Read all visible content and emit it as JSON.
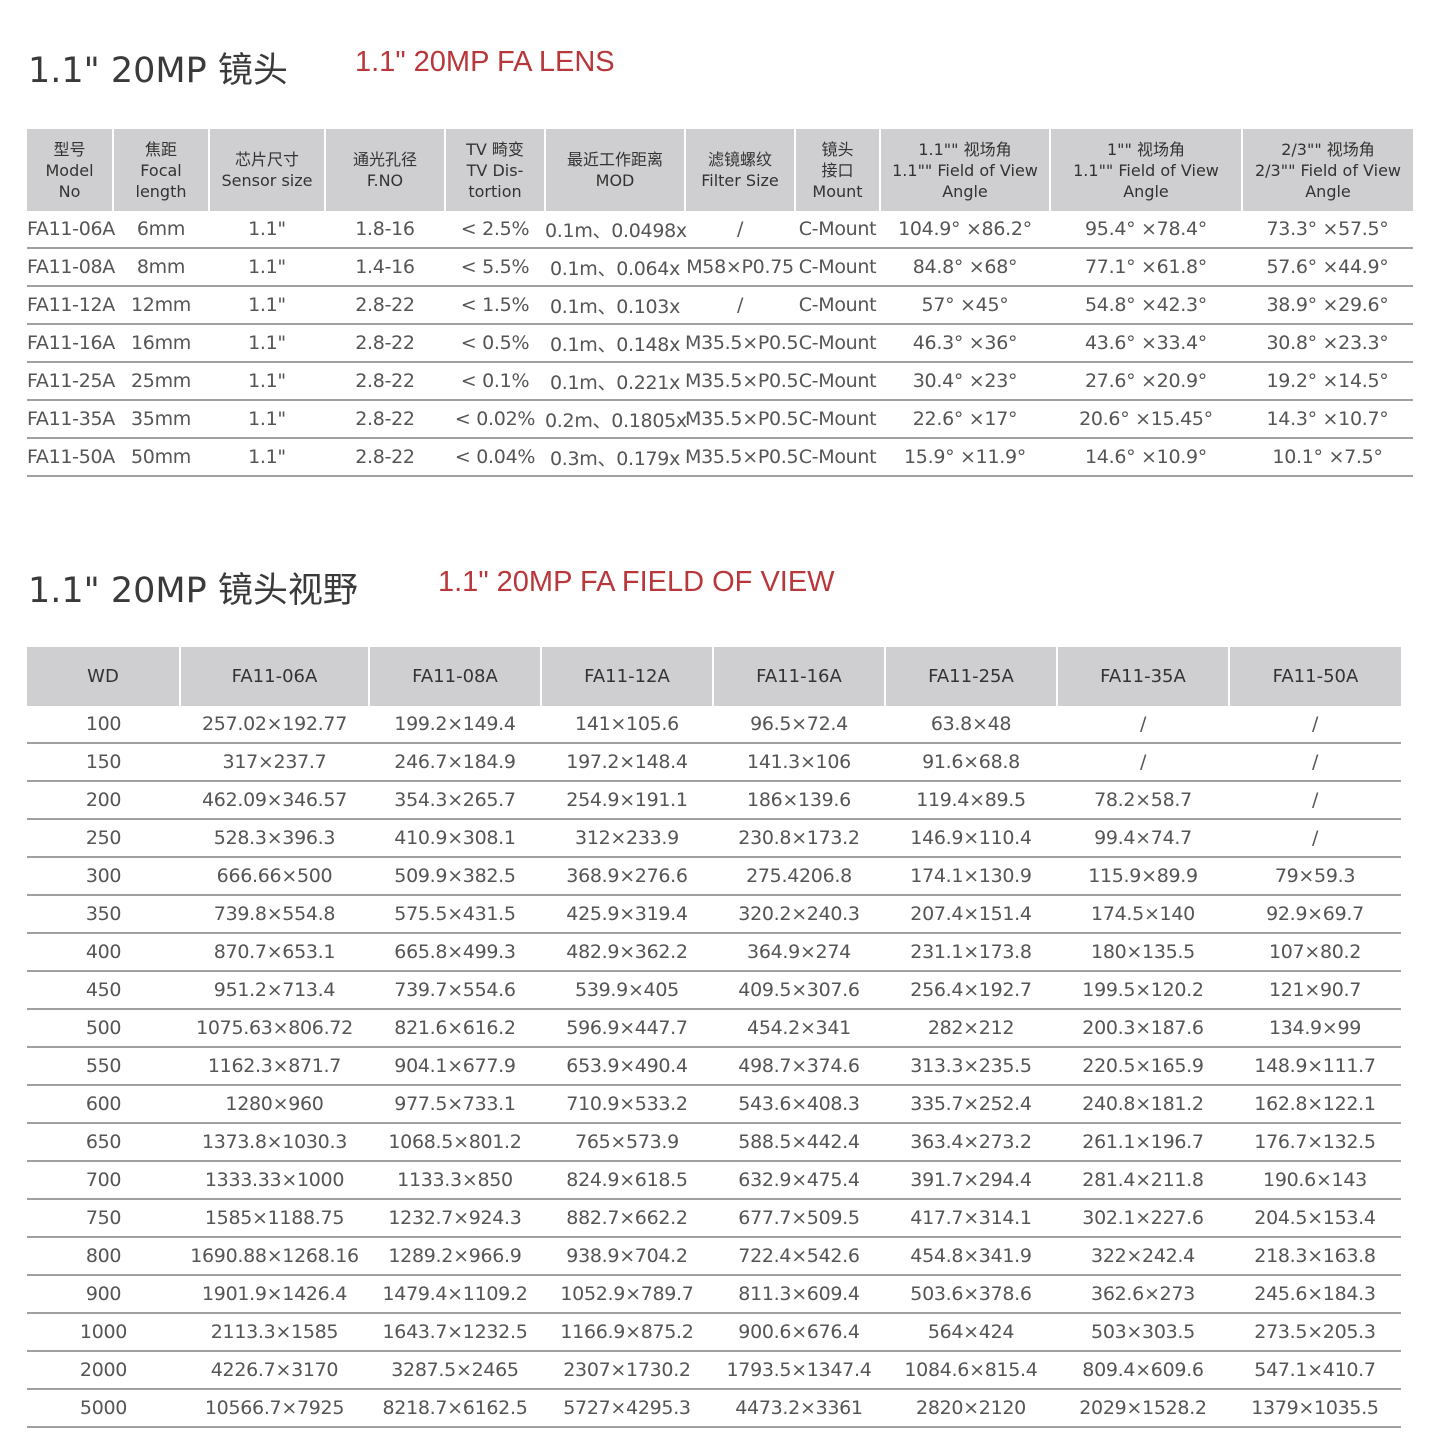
{
  "lens": {
    "title": "1.1\" 20MP 镜头",
    "subtitle": "1.1\" 20MP FA LENS",
    "headers": [
      [
        "型号",
        "Model",
        "No"
      ],
      [
        "焦距",
        "Focal",
        "length"
      ],
      [
        "芯片尺寸",
        "Sensor size"
      ],
      [
        "通光孔径",
        "F.NO"
      ],
      [
        "TV 畸变",
        "TV Dis-",
        "tortion"
      ],
      [
        "最近工作距离",
        "MOD"
      ],
      [
        "滤镜螺纹",
        "Filter Size"
      ],
      [
        "镜头",
        "接口",
        "Mount"
      ],
      [
        "1.1\"\" 视场角",
        "1.1\"\" Field of View",
        "Angle"
      ],
      [
        "1\"\" 视场角",
        "1.1\"\" Field of View",
        "Angle"
      ],
      [
        "2/3\"\" 视场角",
        "2/3\"\" Field of View",
        "Angle"
      ]
    ],
    "rows": [
      [
        "FA11-06A",
        "6mm",
        "1.1\"",
        "1.8-16",
        "< 2.5%",
        "0.1m、0.0498x",
        "/",
        "C-Mount",
        "104.9° ×86.2°",
        "95.4° ×78.4°",
        "73.3° ×57.5°"
      ],
      [
        "FA11-08A",
        "8mm",
        "1.1\"",
        "1.4-16",
        "< 5.5%",
        "0.1m、0.064x",
        "M58×P0.75",
        "C-Mount",
        "84.8° ×68°",
        "77.1° ×61.8°",
        "57.6° ×44.9°"
      ],
      [
        "FA11-12A",
        "12mm",
        "1.1\"",
        "2.8-22",
        "< 1.5%",
        "0.1m、0.103x",
        "/",
        "C-Mount",
        "57° ×45°",
        "54.8° ×42.3°",
        "38.9° ×29.6°"
      ],
      [
        "FA11-16A",
        "16mm",
        "1.1\"",
        "2.8-22",
        "< 0.5%",
        "0.1m、0.148x",
        "M35.5×P0.5",
        "C-Mount",
        "46.3° ×36°",
        "43.6° ×33.4°",
        "30.8° ×23.3°"
      ],
      [
        "FA11-25A",
        "25mm",
        "1.1\"",
        "2.8-22",
        "< 0.1%",
        "0.1m、0.221x",
        "M35.5×P0.5",
        "C-Mount",
        "30.4° ×23°",
        "27.6° ×20.9°",
        "19.2° ×14.5°"
      ],
      [
        "FA11-35A",
        "35mm",
        "1.1\"",
        "2.8-22",
        "< 0.02%",
        "0.2m、0.1805x",
        "M35.5×P0.5",
        "C-Mount",
        "22.6° ×17°",
        "20.6° ×15.45°",
        "14.3° ×10.7°"
      ],
      [
        "FA11-50A",
        "50mm",
        "1.1\"",
        "2.8-22",
        "< 0.04%",
        "0.3m、0.179x",
        "M35.5×P0.5",
        "C-Mount",
        "15.9° ×11.9°",
        "14.6° ×10.9°",
        "10.1° ×7.5°"
      ]
    ]
  },
  "fov": {
    "title": "1.1\" 20MP 镜头视野",
    "subtitle": "1.1\" 20MP FA FIELD OF VIEW",
    "headers": [
      "WD",
      "FA11-06A",
      "FA11-08A",
      "FA11-12A",
      "FA11-16A",
      "FA11-25A",
      "FA11-35A",
      "FA11-50A"
    ],
    "rows": [
      [
        "100",
        "257.02×192.77",
        "199.2×149.4",
        "141×105.6",
        "96.5×72.4",
        "63.8×48",
        "/",
        "/"
      ],
      [
        "150",
        "317×237.7",
        "246.7×184.9",
        "197.2×148.4",
        "141.3×106",
        "91.6×68.8",
        "/",
        "/"
      ],
      [
        "200",
        "462.09×346.57",
        "354.3×265.7",
        "254.9×191.1",
        "186×139.6",
        "119.4×89.5",
        "78.2×58.7",
        "/"
      ],
      [
        "250",
        "528.3×396.3",
        "410.9×308.1",
        "312×233.9",
        "230.8×173.2",
        "146.9×110.4",
        "99.4×74.7",
        "/"
      ],
      [
        "300",
        "666.66×500",
        "509.9×382.5",
        "368.9×276.6",
        "275.4206.8",
        "174.1×130.9",
        "115.9×89.9",
        "79×59.3"
      ],
      [
        "350",
        "739.8×554.8",
        "575.5×431.5",
        "425.9×319.4",
        "320.2×240.3",
        "207.4×151.4",
        "174.5×140",
        "92.9×69.7"
      ],
      [
        "400",
        "870.7×653.1",
        "665.8×499.3",
        "482.9×362.2",
        "364.9×274",
        "231.1×173.8",
        "180×135.5",
        "107×80.2"
      ],
      [
        "450",
        "951.2×713.4",
        "739.7×554.6",
        "539.9×405",
        "409.5×307.6",
        "256.4×192.7",
        "199.5×120.2",
        "121×90.7"
      ],
      [
        "500",
        "1075.63×806.72",
        "821.6×616.2",
        "596.9×447.7",
        "454.2×341",
        "282×212",
        "200.3×187.6",
        "134.9×99"
      ],
      [
        "550",
        "1162.3×871.7",
        "904.1×677.9",
        "653.9×490.4",
        "498.7×374.6",
        "313.3×235.5",
        "220.5×165.9",
        "148.9×111.7"
      ],
      [
        "600",
        "1280×960",
        "977.5×733.1",
        "710.9×533.2",
        "543.6×408.3",
        "335.7×252.4",
        "240.8×181.2",
        "162.8×122.1"
      ],
      [
        "650",
        "1373.8×1030.3",
        "1068.5×801.2",
        "765×573.9",
        "588.5×442.4",
        "363.4×273.2",
        "261.1×196.7",
        "176.7×132.5"
      ],
      [
        "700",
        "1333.33×1000",
        "1133.3×850",
        "824.9×618.5",
        "632.9×475.4",
        "391.7×294.4",
        "281.4×211.8",
        "190.6×143"
      ],
      [
        "750",
        "1585×1188.75",
        "1232.7×924.3",
        "882.7×662.2",
        "677.7×509.5",
        "417.7×314.1",
        "302.1×227.6",
        "204.5×153.4"
      ],
      [
        "800",
        "1690.88×1268.16",
        "1289.2×966.9",
        "938.9×704.2",
        "722.4×542.6",
        "454.8×341.9",
        "322×242.4",
        "218.3×163.8"
      ],
      [
        "900",
        "1901.9×1426.4",
        "1479.4×1109.2",
        "1052.9×789.7",
        "811.3×609.4",
        "503.6×378.6",
        "362.6×273",
        "245.6×184.3"
      ],
      [
        "1000",
        "2113.3×1585",
        "1643.7×1232.5",
        "1166.9×875.2",
        "900.6×676.4",
        "564×424",
        "503×303.5",
        "273.5×205.3"
      ],
      [
        "2000",
        "4226.7×3170",
        "3287.5×2465",
        "2307×1730.2",
        "1793.5×1347.4",
        "1084.6×815.4",
        "809.4×609.6",
        "547.1×410.7"
      ],
      [
        "5000",
        "10566.7×7925",
        "8218.7×6162.5",
        "5727×4295.3",
        "4473.2×3361",
        "2820×2120",
        "2029×1528.2",
        "1379×1035.5"
      ]
    ]
  }
}
